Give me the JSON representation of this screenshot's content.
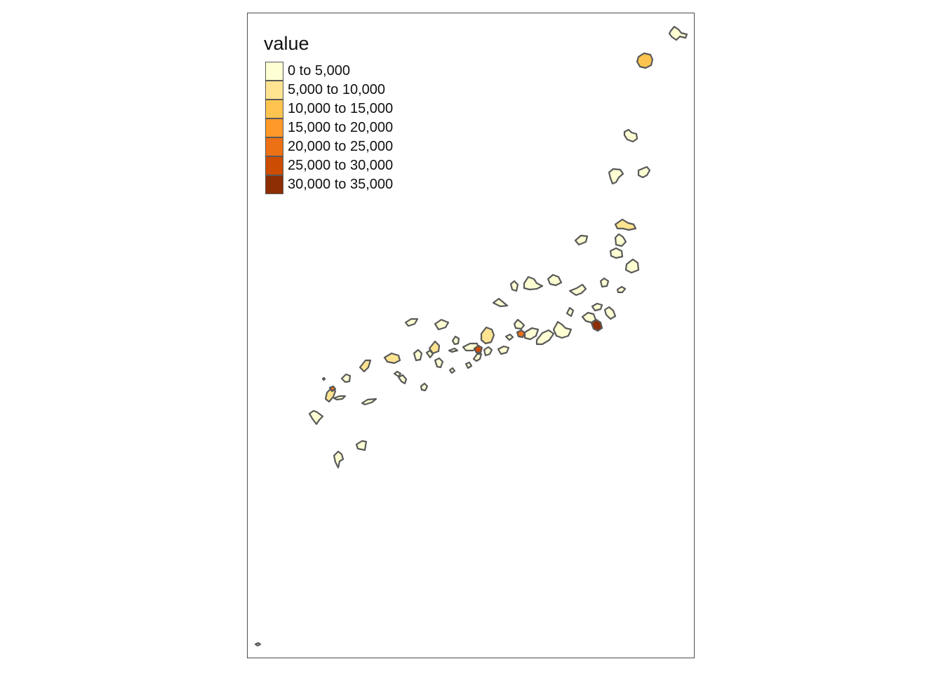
{
  "legend": {
    "title": "value",
    "classes": [
      {
        "label": "0 to 5,000",
        "color": "#ffffd4"
      },
      {
        "label": "5,000 to 10,000",
        "color": "#fee391"
      },
      {
        "label": "10,000 to 15,000",
        "color": "#fec44f"
      },
      {
        "label": "15,000 to 20,000",
        "color": "#fe9929"
      },
      {
        "label": "20,000 to 25,000",
        "color": "#ec7014"
      },
      {
        "label": "25,000 to 30,000",
        "color": "#cc4c02"
      },
      {
        "label": "30,000 to 35,000",
        "color": "#8c2d04"
      }
    ]
  },
  "map": {
    "stroke_color": "#595959",
    "frame_color": "#4d4d4d"
  }
}
